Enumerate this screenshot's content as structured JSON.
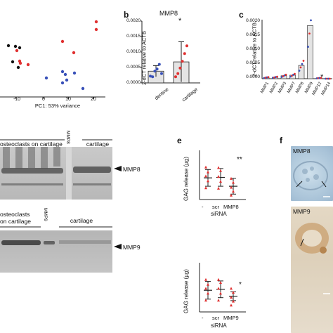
{
  "panel_a": {
    "xlabel": "PC1: 53% variance",
    "ticks": [
      "-10",
      "0",
      "10",
      "20"
    ]
  },
  "panel_b": {
    "letter": "b",
    "title": "MMP8",
    "ylabel": "2-dCT relative to ACTB",
    "yticks": [
      "0.0000",
      "0.0005",
      "0.0010",
      "0.0015",
      "0.0020"
    ],
    "categories": [
      "dentine",
      "cartilage"
    ],
    "significance": "*",
    "chart_data": {
      "type": "bar",
      "categories": [
        "dentine",
        "cartilage"
      ],
      "values": [
        0.00038,
        0.00068
      ],
      "errors": [
        0.00018,
        0.00065
      ],
      "ylim": [
        0,
        0.002
      ],
      "points": [
        [
          0.00022,
          0.0002,
          0.00038,
          0.00045,
          0.0006,
          0.0003
        ],
        [
          0.0002,
          0.0003,
          0.00048,
          0.0007,
          0.00095,
          0.0012
        ]
      ]
    }
  },
  "panel_c": {
    "letter": "c",
    "ylabel": "2-dCT relative to ACTB",
    "yticks": [
      "0.0000",
      "0.0005",
      "0.0010",
      "0.0015",
      "0.0020"
    ],
    "categories": [
      "MMP1",
      "MMP2",
      "MMP3",
      "MMP7",
      "MMP8",
      "MMP9",
      "MMP12",
      "MMP14"
    ],
    "significance": "*",
    "chart_data": {
      "type": "bar",
      "categories": [
        "MMP1",
        "MMP2",
        "MMP3",
        "MMP7",
        "MMP8",
        "MMP9",
        "MMP12",
        "MMP14"
      ],
      "values": [
        4e-05,
        5e-05,
        0.0001,
        0.00012,
        0.00045,
        0.0018,
        2e-05,
        0.0
      ],
      "ylim": [
        0,
        0.002
      ]
    }
  },
  "panel_d": {
    "letter": "",
    "top_label_left": "osteoclasts on cartilage",
    "top_lane_label": "MMP8",
    "top_label_right": "cartilage",
    "top_arrow_label": "MMP8",
    "bottom_label_left_1": "osteoclasts",
    "bottom_label_left_2": "on cartilage",
    "bottom_lane_label": "MMP9",
    "bottom_label_right": "cartilage",
    "bottom_arrow_label": "MMP9"
  },
  "panel_e": {
    "letter": "e",
    "ylabel": "GAG release (µg)",
    "top_categories": [
      "-",
      "scr",
      "MMP8"
    ],
    "bottom_categories": [
      "-",
      "scr",
      "MMP9"
    ],
    "xlabel": "siRNA",
    "top_significance": "**",
    "bottom_significance": "*",
    "chart_data": [
      {
        "type": "scatter",
        "categories": [
          "-",
          "scr",
          "MMP8"
        ],
        "values": [
          44,
          45,
          27
        ],
        "errors": [
          17,
          18,
          16
        ]
      },
      {
        "type": "scatter",
        "categories": [
          "-",
          "scr",
          "MMP9"
        ],
        "values": [
          44,
          46,
          32
        ],
        "errors": [
          18,
          17,
          9
        ]
      }
    ]
  },
  "panel_f": {
    "letter": "f",
    "top_label": "MMP8",
    "bottom_label": "MMP9"
  },
  "colors": {
    "red": "#e03030",
    "blue": "#3850b8",
    "black": "#111111",
    "bar_fill": "#e4e4e4"
  }
}
